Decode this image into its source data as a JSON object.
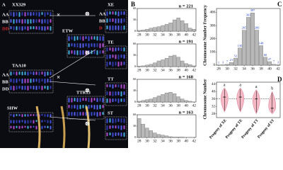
{
  "panel_a": {
    "letter": "A",
    "labels": [
      "XX329",
      "AA",
      "BB",
      "DD",
      "ETW",
      "TAA10",
      "AA",
      "BB",
      "DD",
      "TTR13",
      "SHW",
      "XE",
      "AA",
      "BB",
      "D",
      "TE",
      "TT",
      "ST"
    ],
    "cross": "×",
    "selfing": "⊗"
  },
  "panel_b": {
    "letter": "B",
    "xticks": [
      28,
      30,
      32,
      34,
      36,
      38,
      40,
      42
    ],
    "xlim": [
      27.5,
      42.5
    ],
    "ylim": [
      0,
      60
    ],
    "yticks": [
      0,
      30,
      60
    ],
    "bins_x": [
      28,
      29,
      30,
      31,
      32,
      33,
      34,
      35,
      36,
      37,
      38,
      39,
      40,
      41,
      42
    ],
    "histograms": [
      {
        "n_label": "n = 221",
        "counts": [
          2,
          3,
          5,
          8,
          10,
          12,
          15,
          18,
          22,
          30,
          35,
          28,
          20,
          8,
          5
        ]
      },
      {
        "n_label": "n = 191",
        "counts": [
          1,
          2,
          4,
          6,
          10,
          15,
          18,
          22,
          28,
          30,
          25,
          15,
          8,
          5,
          2
        ]
      },
      {
        "n_label": "n = 168",
        "counts": [
          2,
          4,
          6,
          8,
          12,
          16,
          20,
          24,
          26,
          22,
          14,
          8,
          4,
          2,
          0
        ]
      },
      {
        "n_label": "n = 163",
        "counts": [
          50,
          35,
          25,
          18,
          12,
          8,
          6,
          4,
          2,
          1,
          1,
          1,
          0,
          0,
          0
        ]
      }
    ]
  },
  "panel_c": {
    "letter": "C",
    "ylabel": "Chromosome Number Frequency",
    "xlim": [
      27.5,
      42.5
    ],
    "xticks": [
      28,
      30,
      32,
      34,
      36,
      38,
      40,
      42
    ],
    "ylim": [
      0,
      430
    ],
    "yticks": [
      0,
      100,
      200,
      300,
      400
    ],
    "bins_x": [
      28,
      29,
      30,
      31,
      32,
      33,
      34,
      35,
      36,
      37,
      38,
      39,
      40,
      41,
      42
    ],
    "values": [
      1,
      3,
      7,
      21,
      52,
      130,
      265,
      363,
      397,
      266,
      148,
      60,
      27,
      7,
      3
    ]
  },
  "panel_d": {
    "letter": "D",
    "ylabel": "Chromosome Number",
    "ylim": [
      26,
      45
    ],
    "yticks": [
      28,
      32,
      36,
      40,
      44
    ],
    "reference": 36,
    "categories": [
      "Progeny of XE",
      "Progeny of TE",
      "Progeny of TT",
      "Progeny of ST"
    ],
    "letters": [
      "a",
      "a",
      "a",
      "b"
    ],
    "min": [
      29,
      29,
      28,
      28
    ],
    "max": [
      42,
      42,
      41,
      40
    ],
    "median": [
      37,
      37,
      36,
      31
    ]
  }
}
